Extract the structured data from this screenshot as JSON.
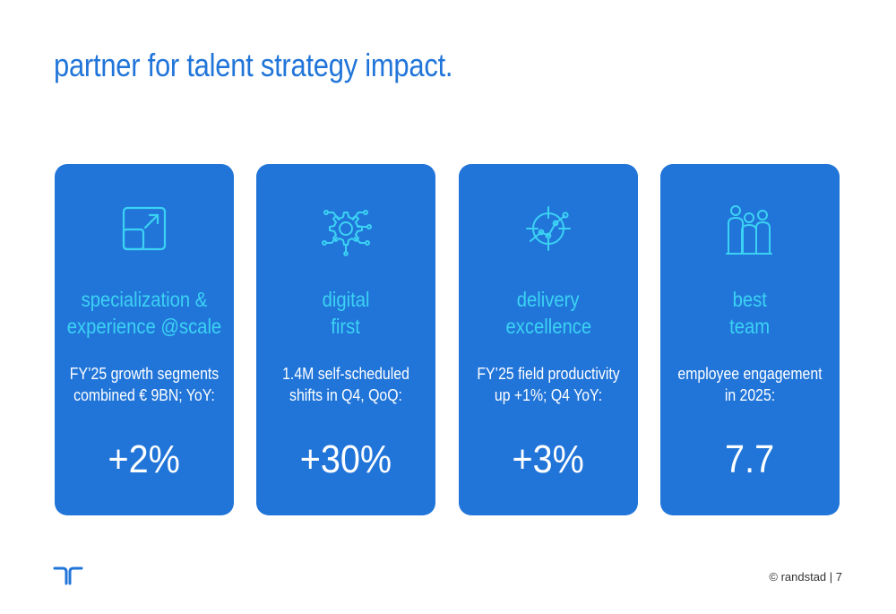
{
  "page": {
    "title": "partner for talent strategy impact.",
    "accent_color": "#2175d9",
    "heading_color": "#3bd2f3"
  },
  "cards": [
    {
      "icon": "expand-icon",
      "heading": [
        "specialization &",
        "experience @scale"
      ],
      "description": [
        "FY’25 growth segments",
        "combined € 9BN; YoY:"
      ],
      "value": "+2%"
    },
    {
      "icon": "gear-circuit-icon",
      "heading": [
        "digital",
        "first"
      ],
      "description": [
        "1.4M self-scheduled",
        "shifts in Q4, QoQ:"
      ],
      "value": "+30%"
    },
    {
      "icon": "target-chart-icon",
      "heading": [
        "delivery",
        "excellence"
      ],
      "description": [
        "FY’25 field productivity",
        "up +1%; Q4 YoY:"
      ],
      "value": "+3%"
    },
    {
      "icon": "team-icon",
      "heading": [
        "best",
        "team"
      ],
      "description": [
        "employee engagement",
        "in 2025:"
      ],
      "value": "7.7"
    }
  ],
  "footer": {
    "logo": "randstad-logo",
    "copyright": "© randstad | 7"
  }
}
